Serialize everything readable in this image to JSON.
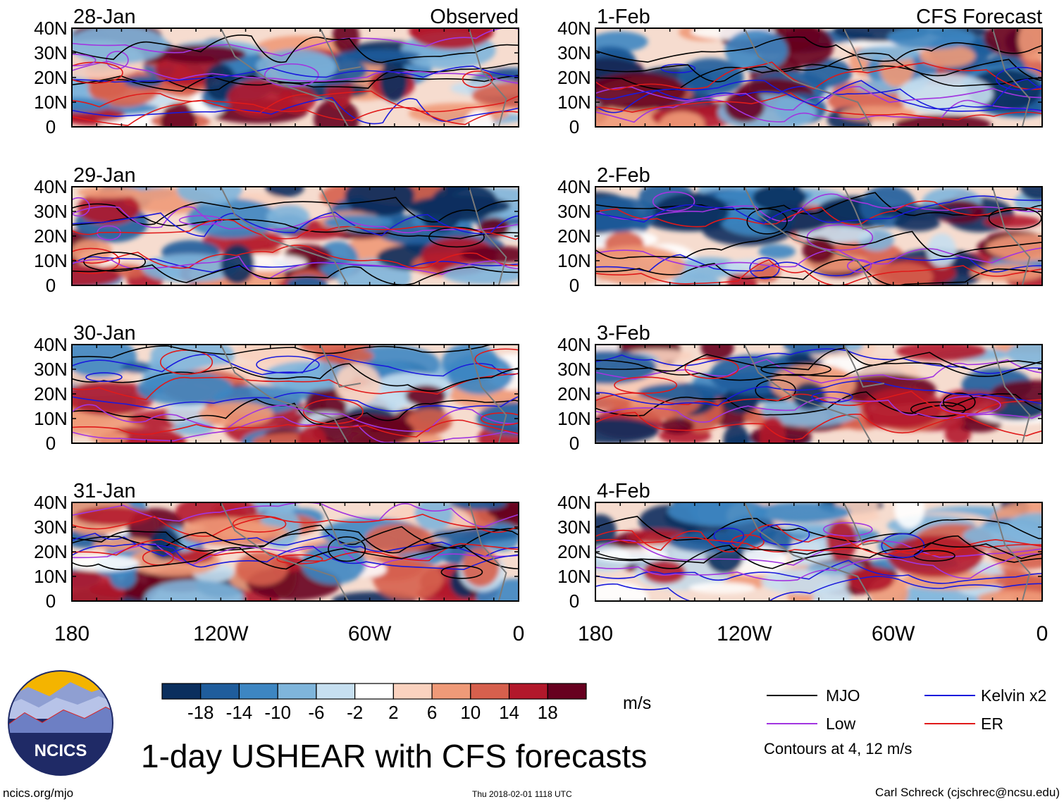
{
  "chart_data": {
    "type": "heatmap",
    "title": "1-day USHEAR with CFS forecasts",
    "variable": "USHEAR",
    "units": "m/s",
    "y_ticks": [
      "40N",
      "30N",
      "20N",
      "10N",
      "0"
    ],
    "x_ticks": [
      "180",
      "120W",
      "60W",
      "0"
    ],
    "ylim": [
      0,
      40
    ],
    "xlim": [
      -180,
      0
    ],
    "columns": [
      {
        "name": "Observed",
        "dates": [
          "28-Jan",
          "29-Jan",
          "30-Jan",
          "31-Jan"
        ]
      },
      {
        "name": "CFS Forecast",
        "dates": [
          "1-Feb",
          "2-Feb",
          "3-Feb",
          "4-Feb"
        ]
      }
    ],
    "colorbar": {
      "ticks": [
        "-18",
        "-14",
        "-10",
        "-6",
        "-2",
        "2",
        "6",
        "10",
        "14",
        "18"
      ],
      "colors": [
        "#0b2f5e",
        "#1f5d9c",
        "#3d86c2",
        "#7fb5db",
        "#c6dff0",
        "#ffffff",
        "#fad2bf",
        "#ef9a78",
        "#d6604d",
        "#b2182b",
        "#67001f"
      ]
    },
    "contour_legend": [
      {
        "label": "MJO",
        "color": "#000000"
      },
      {
        "label": "Low",
        "color": "#a235e0"
      },
      {
        "label": "Kelvin x2",
        "color": "#1a1adc"
      },
      {
        "label": "ER",
        "color": "#e01a1a"
      }
    ],
    "contour_note": "Contours at 4, 12 m/s"
  },
  "logo": {
    "text": "NCICS"
  },
  "footer": {
    "site": "ncics.org/mjo",
    "timestamp": "Thu 2018-02-01 1118 UTC",
    "author": "Carl Schreck (cjschrec@ncsu.edu)"
  }
}
